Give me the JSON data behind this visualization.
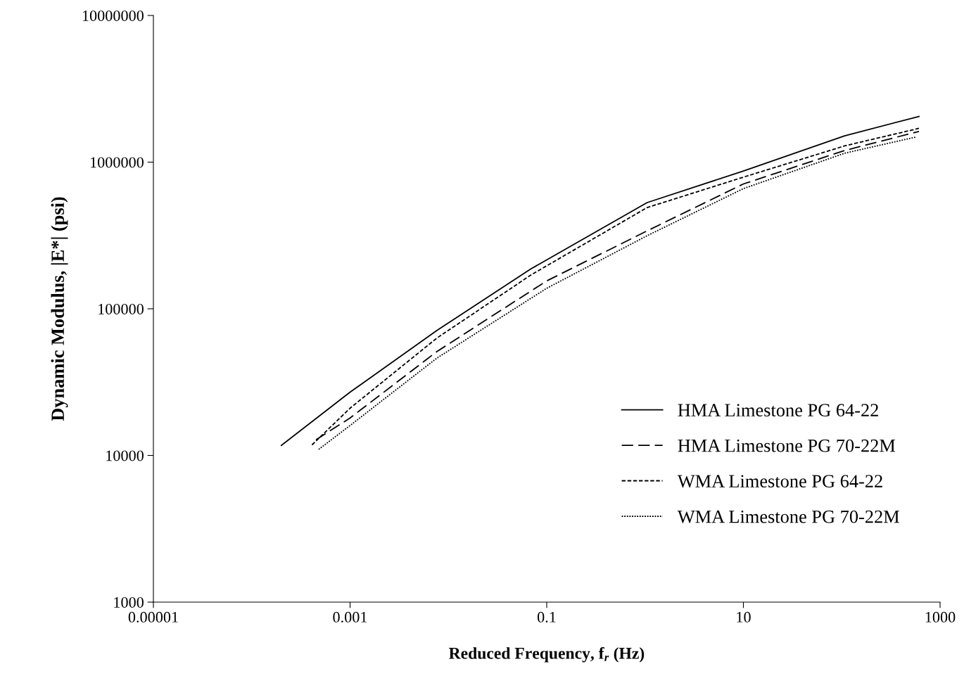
{
  "chart_data": {
    "type": "line",
    "xlabel": "Reduced Frequency, f$_{r}$ (Hz)",
    "ylabel": "Dynamic Modulus, |E*| (psi)",
    "log": "xy",
    "grid": false,
    "legend": "bottom right",
    "marker": "none",
    "xlim": [
      1e-05,
      1000
    ],
    "xticks": [
      {
        "value": 1e-05,
        "label": "0.00001"
      },
      {
        "value": 0.001,
        "label": "0.001"
      },
      {
        "value": 0.1,
        "label": "0.1"
      },
      10,
      1000
    ],
    "ylim": [
      1000,
      10000000
    ],
    "yticks": [
      1000,
      10000,
      100000,
      1000000,
      10000000
    ],
    "series": [
      {
        "name": "HMA Limestone PG 64-22",
        "color": "#000000",
        "line_style": "solid",
        "x": [
          0.0002,
          0.001,
          0.0076,
          0.069,
          1.05,
          10,
          107,
          610
        ],
        "values": [
          11700,
          27000,
          71000,
          187000,
          530000,
          870000,
          1510000,
          2050000
        ]
      },
      {
        "name": "HMA Limestone PG 70-22M",
        "color": "#000000",
        "line_style": "dashed",
        "x": [
          0.00045,
          0.001,
          0.0076,
          0.1,
          1.05,
          10,
          107,
          610
        ],
        "values": [
          12800,
          18000,
          51000,
          155000,
          340000,
          710000,
          1200000,
          1620000
        ]
      },
      {
        "name": "WMA Limestone PG 64-22",
        "color": "#000000",
        "line_style": "dashed",
        "x": [
          0.00041,
          0.001,
          0.0076,
          0.069,
          1.05,
          10,
          107,
          610
        ],
        "values": [
          11800,
          21000,
          63000,
          170000,
          490000,
          790000,
          1290000,
          1700000
        ]
      },
      {
        "name": "WMA Limestone PG 70-22M",
        "color": "#000000",
        "line_style": "dotted",
        "x": [
          0.00048,
          0.001,
          0.0076,
          0.1,
          1.05,
          10,
          107,
          560
        ],
        "values": [
          11000,
          16000,
          46000,
          138000,
          315000,
          660000,
          1150000,
          1480000
        ]
      }
    ]
  }
}
